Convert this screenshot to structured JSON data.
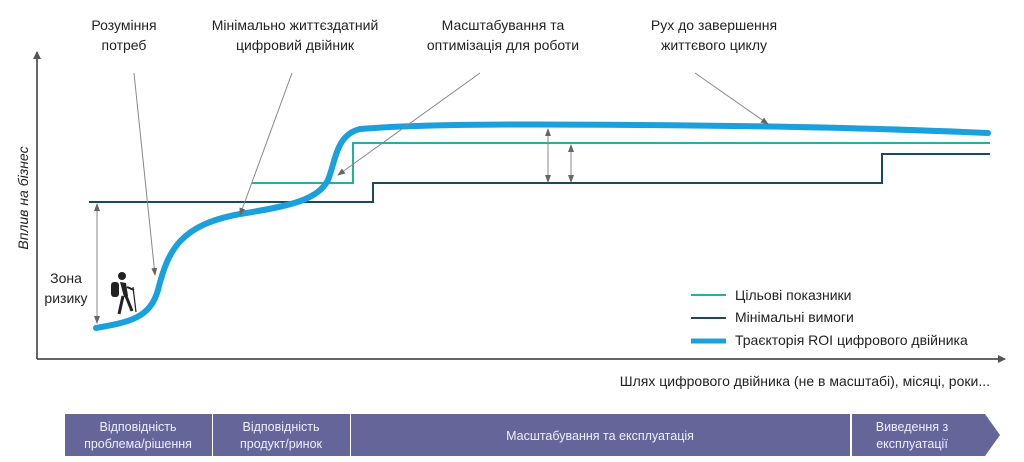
{
  "y_axis_label": "Вплив на бізнес",
  "x_axis_label": "Шлях цифрового двійника (не в масштабі), місяці, роки...",
  "risk_zone": {
    "line1": "Зона",
    "line2": "ризику"
  },
  "callouts": [
    {
      "line1": "Розуміння",
      "line2": "потреб"
    },
    {
      "line1": "Мінімально життєздатний",
      "line2": "цифровий двійник"
    },
    {
      "line1": "Масштабування та",
      "line2": "оптимізація для роботи"
    },
    {
      "line1": "Рух до завершення",
      "line2": "життєвого циклу"
    }
  ],
  "legend": [
    {
      "label": "Цільові показники",
      "color": "#1fb39a"
    },
    {
      "label": "Мінімальні вимоги",
      "color": "#1b4a5e"
    },
    {
      "label": "Траєкторія ROI цифрового двійника",
      "color": "#1aa0dc"
    }
  ],
  "phases": [
    {
      "line1": "Відповідність",
      "line2": "проблема/рішення"
    },
    {
      "line1": "Відповідність",
      "line2": "продукт/ринок"
    },
    {
      "line1": "Масштабування та експлуатація",
      "line2": ""
    },
    {
      "line1": "Виведення з",
      "line2": "експлуатації"
    }
  ],
  "phase_color": "#66659a",
  "icons": {
    "hiker": "hiker-icon"
  }
}
